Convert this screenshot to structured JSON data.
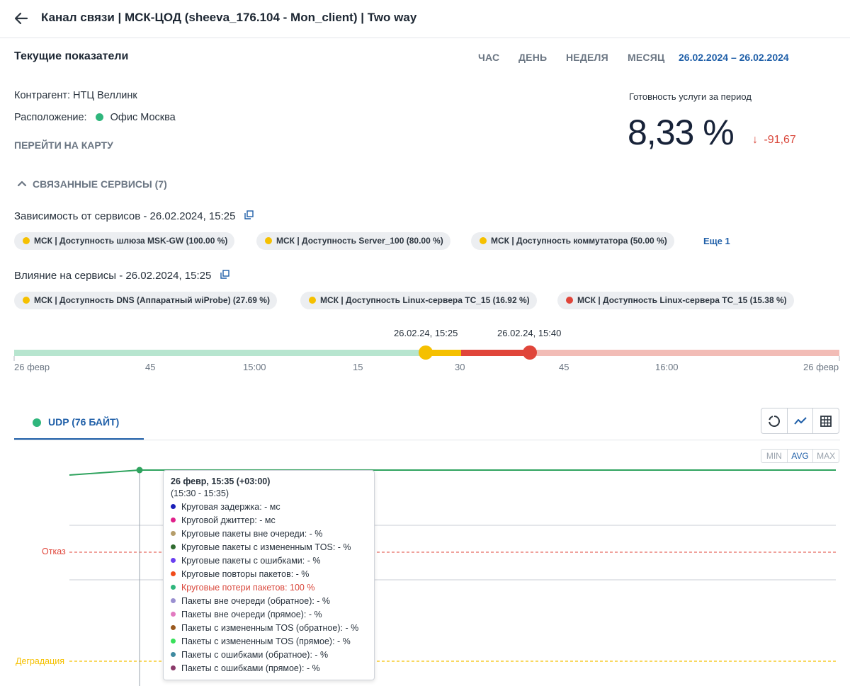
{
  "header": {
    "title": "Канал связи | МСК-ЦОД (sheeva_176.104 - Mon_client) | Two way"
  },
  "current": {
    "title": "Текущие показатели",
    "periods": [
      "ЧАС",
      "ДЕНЬ",
      "НЕДЕЛЯ",
      "МЕСЯЦ"
    ],
    "date_range": "26.02.2024 – 26.02.2024"
  },
  "info": {
    "contractor": "Контрагент: НТЦ Веллинк",
    "location_label": "Расположение:",
    "location_value": "Офис Москва",
    "location_color": "#2fb67c",
    "map_link": "ПЕРЕЙТИ НА КАРТУ"
  },
  "readiness": {
    "label": "Готовность услуги за период",
    "value": "8,33 %",
    "delta": "-91,67",
    "delta_arrow": "↓"
  },
  "related": {
    "label": "СВЯЗАННЫЕ СЕРВИСЫ (7)"
  },
  "dependency": {
    "title": "Зависимость от сервисов - 26.02.2024, 15:25",
    "chips": [
      {
        "label": "МСК | Доступность шлюза MSK-GW (100.00 %)",
        "color": "#f5c000"
      },
      {
        "label": "МСК | Доступность Server_100 (80.00 %)",
        "color": "#f5c000"
      },
      {
        "label": "МСК | Доступность коммутатора (50.00 %)",
        "color": "#f5c000"
      }
    ],
    "more": "Еще 1"
  },
  "influence": {
    "title": "Влияние на сервисы - 26.02.2024, 15:25",
    "chips": [
      {
        "label": "МСК | Доступность DNS (Аппаратный wiProbe) (27.69 %)",
        "color": "#f5c000"
      },
      {
        "label": "МСК | Доступность Linux-сервера TC_15 (16.92 %)",
        "color": "#f5c000"
      },
      {
        "label": "МСК | Доступность Linux-сервера TC_15 (15.38 %)",
        "color": "#e0453a"
      }
    ]
  },
  "timeline": {
    "marker1": "26.02.24, 15:25",
    "marker2": "26.02.24, 15:40",
    "ticks": [
      "26 февр",
      "45",
      "15:00",
      "15",
      "30",
      "45",
      "16:00",
      "26 февр"
    ]
  },
  "tabs": [
    {
      "label": "UDP (76 БАЙТ)",
      "color": "#2fb67c"
    }
  ],
  "aggregation": {
    "options": [
      "MIN",
      "AVG",
      "MAX"
    ],
    "selected": "AVG"
  },
  "thresholds": {
    "fail": {
      "label": "Отказ",
      "color": "#e0453a"
    },
    "degrade": {
      "label": "Деградация",
      "color": "#f5c000"
    }
  },
  "tooltip": {
    "title": "26 февр, 15:35 (+03:00)",
    "subtitle": "(15:30 - 15:35)",
    "rows": [
      {
        "text": "Круговая задержка: - мс",
        "color": "#1a1fb8"
      },
      {
        "text": "Круговой джиттер: - мс",
        "color": "#e0208a"
      },
      {
        "text": "Круговые пакеты вне очереди: - %",
        "color": "#b59d6a"
      },
      {
        "text": "Круговые пакеты с измененным TOS: - %",
        "color": "#2f6b2f"
      },
      {
        "text": "Круговые пакеты с ошибками: - %",
        "color": "#6a3ff0"
      },
      {
        "text": "Круговые повторы пакетов: - %",
        "color": "#f04a1a"
      },
      {
        "text": "Круговые потери пакетов: 100 %",
        "color": "#2fb67c",
        "highlight": true
      },
      {
        "text": "Пакеты вне очереди (обратное): - %",
        "color": "#9a8fd0"
      },
      {
        "text": "Пакеты вне очереди (прямое): - %",
        "color": "#e27ac0"
      },
      {
        "text": "Пакеты с измененным TOS (обратное): - %",
        "color": "#9a5a1f"
      },
      {
        "text": "Пакеты с измененным TOS (прямое): - %",
        "color": "#38e05a"
      },
      {
        "text": "Пакеты с ошибками (обратное): - %",
        "color": "#3f8aa0"
      },
      {
        "text": "Пакеты с ошибками (прямое): - %",
        "color": "#8a3a6a"
      }
    ],
    "highlight_color": "#d9473b"
  },
  "chart_data": {
    "type": "line",
    "series": [
      {
        "values": [
          100,
          100,
          100
        ]
      }
    ],
    "annotations": [
      "Отказ",
      "Деградация"
    ]
  }
}
